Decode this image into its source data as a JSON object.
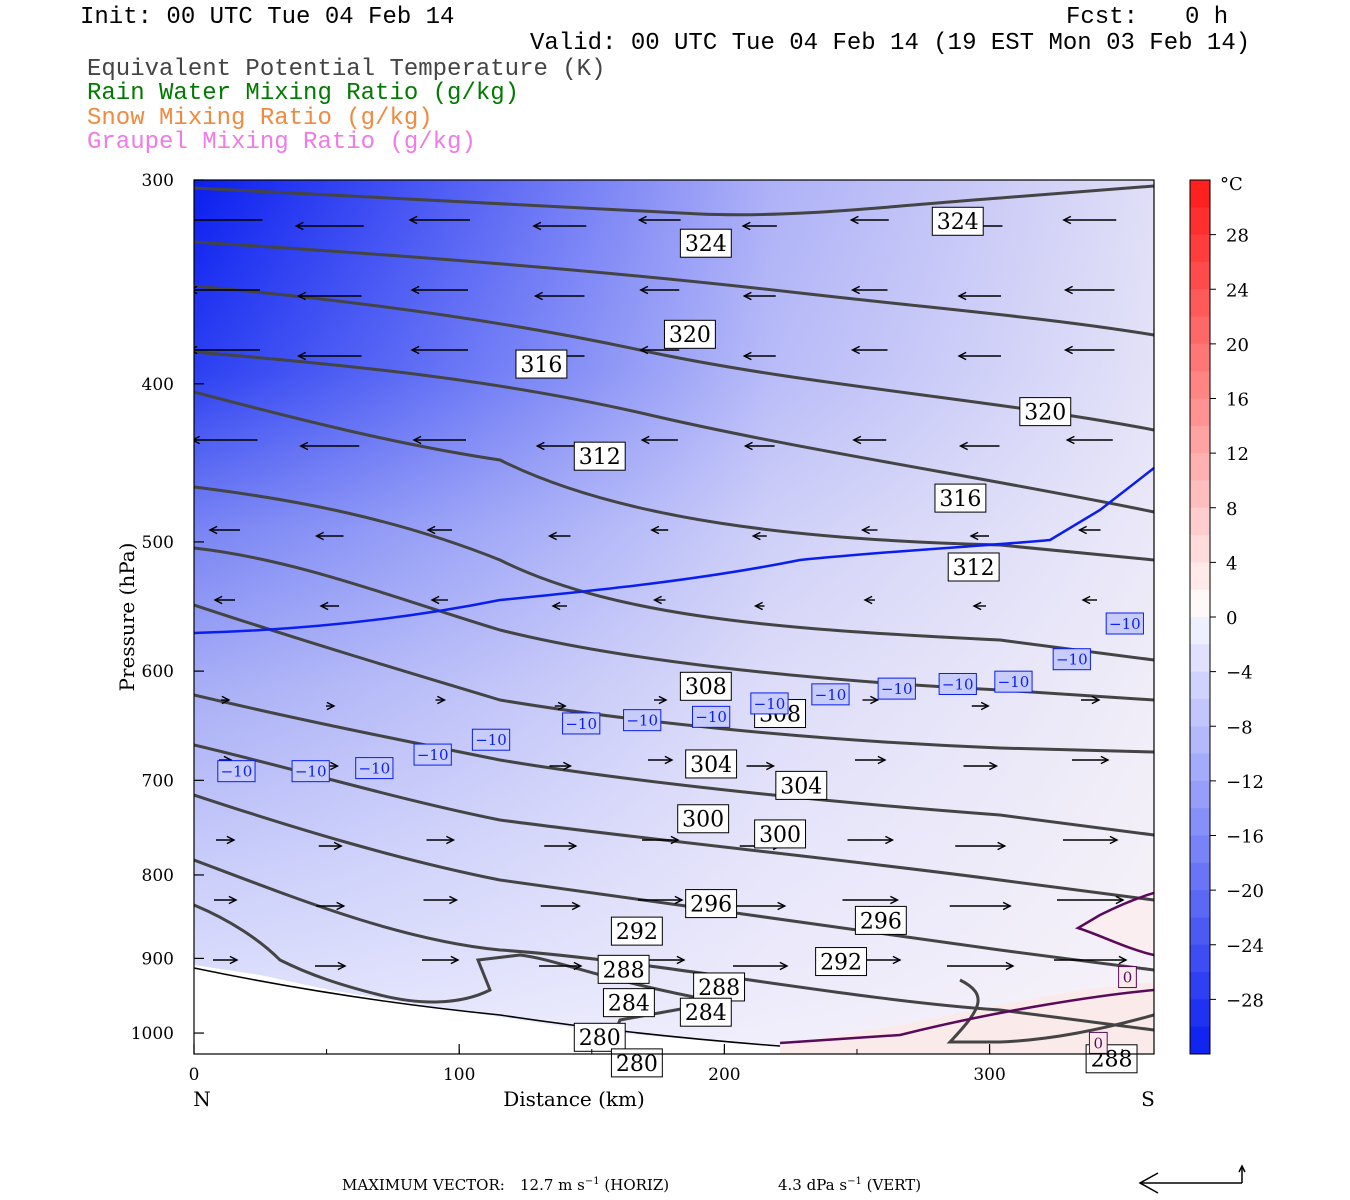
{
  "header": {
    "init": "Init: 00 UTC Tue 04 Feb 14",
    "fcst_label": "Fcst:",
    "fcst_value": "0 h",
    "valid": "Valid: 00 UTC Tue 04 Feb 14 (19 EST Mon 03 Feb 14)"
  },
  "legend": [
    {
      "label": "Equivalent Potential Temperature (K)",
      "color": "#444444"
    },
    {
      "label": "Rain Water Mixing Ratio (g/kg)",
      "color": "#007a00"
    },
    {
      "label": "Snow Mixing Ratio (g/kg)",
      "color": "#f08a40"
    },
    {
      "label": "Graupel Mixing Ratio (g/kg)",
      "color": "#f07ae6"
    }
  ],
  "chart_data": {
    "type": "cross-section contour",
    "xlabel": "Distance (km)",
    "ylabel": "Pressure (hPa)",
    "xlim": [
      0,
      362
    ],
    "ylim": [
      1030,
      300
    ],
    "y_scale": "log",
    "x_ticks": [
      0,
      100,
      200,
      300
    ],
    "y_ticks": [
      300,
      400,
      500,
      600,
      700,
      800,
      900,
      1000
    ],
    "x_end_labels": {
      "left": "N",
      "right": "S"
    },
    "colorbar": {
      "unit": "°C",
      "ticks": [
        28,
        24,
        20,
        16,
        12,
        8,
        4,
        0,
        -4,
        -8,
        -12,
        -16,
        -20,
        -24,
        -28
      ],
      "range": [
        -32,
        32
      ]
    },
    "theta_e_labels": [
      {
        "v": "324",
        "x": 193,
        "p": 328
      },
      {
        "v": "324",
        "x": 288,
        "p": 318
      },
      {
        "v": "320",
        "x": 187,
        "p": 373
      },
      {
        "v": "320",
        "x": 321,
        "p": 416
      },
      {
        "v": "316",
        "x": 131,
        "p": 389
      },
      {
        "v": "316",
        "x": 289,
        "p": 470
      },
      {
        "v": "312",
        "x": 153,
        "p": 443
      },
      {
        "v": "312",
        "x": 294,
        "p": 518
      },
      {
        "v": "308",
        "x": 193,
        "p": 613
      },
      {
        "v": "308",
        "x": 221,
        "p": 637
      },
      {
        "v": "304",
        "x": 195,
        "p": 684
      },
      {
        "v": "304",
        "x": 229,
        "p": 705
      },
      {
        "v": "300",
        "x": 192,
        "p": 739
      },
      {
        "v": "300",
        "x": 221,
        "p": 755
      },
      {
        "v": "296",
        "x": 195,
        "p": 833
      },
      {
        "v": "296",
        "x": 259,
        "p": 853
      },
      {
        "v": "292",
        "x": 167,
        "p": 866
      },
      {
        "v": "292",
        "x": 244,
        "p": 904
      },
      {
        "v": "288",
        "x": 162,
        "p": 914
      },
      {
        "v": "288",
        "x": 198,
        "p": 937
      },
      {
        "v": "288",
        "x": 346,
        "p": 1037
      },
      {
        "v": "284",
        "x": 164,
        "p": 958
      },
      {
        "v": "284",
        "x": 193,
        "p": 971
      },
      {
        "v": "280",
        "x": 153,
        "p": 1006
      },
      {
        "v": "280",
        "x": 167,
        "p": 1043
      }
    ],
    "isotherm_labels": [
      {
        "v": "−10",
        "x": 16,
        "p": 691
      },
      {
        "v": "−10",
        "x": 44,
        "p": 691
      },
      {
        "v": "−10",
        "x": 68,
        "p": 688
      },
      {
        "v": "−10",
        "x": 90,
        "p": 675
      },
      {
        "v": "−10",
        "x": 112,
        "p": 661
      },
      {
        "v": "−10",
        "x": 146,
        "p": 646
      },
      {
        "v": "−10",
        "x": 169,
        "p": 643
      },
      {
        "v": "−10",
        "x": 195,
        "p": 640
      },
      {
        "v": "−10",
        "x": 217,
        "p": 628
      },
      {
        "v": "−10",
        "x": 240,
        "p": 620
      },
      {
        "v": "−10",
        "x": 265,
        "p": 615
      },
      {
        "v": "−10",
        "x": 288,
        "p": 611
      },
      {
        "v": "−10",
        "x": 309,
        "p": 609
      },
      {
        "v": "−10",
        "x": 331,
        "p": 590
      },
      {
        "v": "−10",
        "x": 351,
        "p": 561
      }
    ],
    "zero_labels": [
      {
        "v": "0",
        "x": 352,
        "p": 924
      },
      {
        "v": "0",
        "x": 341,
        "p": 1014
      }
    ]
  },
  "footer": {
    "label": "MAXIMUM VECTOR:",
    "horiz": "12.7 m s",
    "horiz_exp": "−1",
    "horiz_tag": "(HORIZ)",
    "vert": "4.3 dPa s",
    "vert_exp": "−1",
    "vert_tag": "(VERT)"
  }
}
